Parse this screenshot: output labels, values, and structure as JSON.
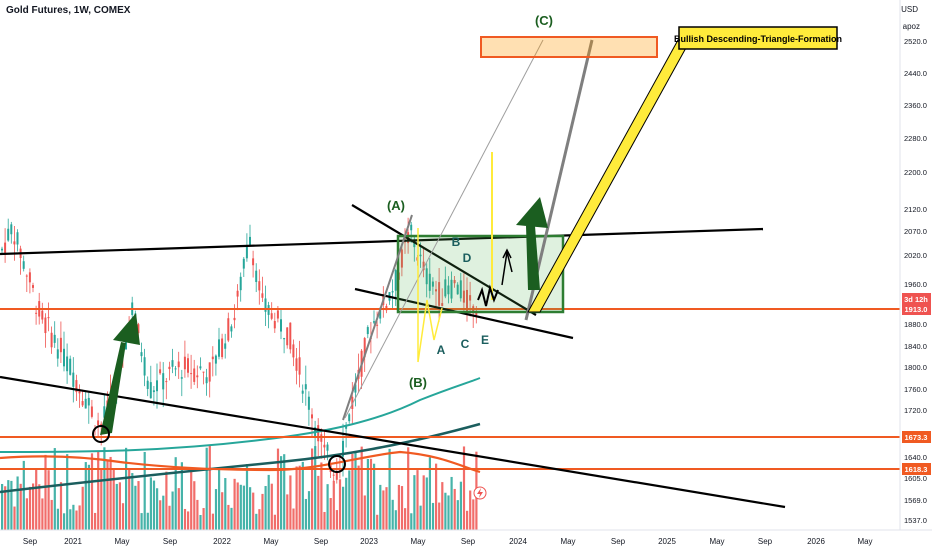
{
  "header": {
    "symbol_title": "Gold Futures, 1W, COMEX",
    "currency": "USD",
    "unit_label": "apoz"
  },
  "price_axis": {
    "ticks": [
      "2520.0",
      "2440.0",
      "2360.0",
      "2280.0",
      "2200.0",
      "2120.0",
      "2070.0",
      "2020.0",
      "1960.0",
      "1880.0",
      "1840.0",
      "1800.0",
      "1760.0",
      "1720.0",
      "1640.0",
      "1605.0",
      "1569.0",
      "1537.0"
    ],
    "labels": [
      {
        "text": "3d 12h",
        "price": 1940,
        "color": "#ef5350"
      },
      {
        "text": "1913.0",
        "price": 1913,
        "color": "#ef5350"
      },
      {
        "text": "1673.3",
        "price": 1673.3,
        "color": "#f05a22"
      },
      {
        "text": "1618.3",
        "price": 1618.3,
        "color": "#f05a22"
      }
    ]
  },
  "time_axis": {
    "ticks": [
      "Sep",
      "2021",
      "May",
      "Sep",
      "2022",
      "May",
      "Sep",
      "2023",
      "May",
      "Sep",
      "2024",
      "May",
      "Sep",
      "2025",
      "May",
      "Sep",
      "2026",
      "May"
    ]
  },
  "annotations": {
    "callout": "Bullish Descending-Triangle-Formation",
    "wave_labels": [
      "(C)",
      "(A)",
      "(B)",
      "A",
      "B",
      "C",
      "D",
      "E"
    ]
  },
  "chart_data": {
    "type": "candlestick",
    "title": "Gold Futures, 1W, COMEX",
    "y_unit": "USD",
    "ylim": [
      1520,
      2580
    ],
    "x_range": [
      "2020-08",
      "2026-06"
    ],
    "key_levels": [
      1913.0,
      1673.3,
      1618.3
    ],
    "target_zone": [
      2500,
      2530
    ],
    "approx_swings": [
      {
        "date": "2020-08",
        "price": 2080
      },
      {
        "date": "2021-03",
        "price": 1680
      },
      {
        "date": "2021-06",
        "price": 1915
      },
      {
        "date": "2022-03",
        "price": 2070
      },
      {
        "date": "2022-10",
        "price": 1620
      },
      {
        "date": "2023-05",
        "price": 2085
      },
      {
        "date": "2023-10",
        "price": 1830
      }
    ],
    "colors": {
      "up": "#26a69a",
      "down": "#ef5350",
      "levels": "#f05a22",
      "box": "#2e7d32",
      "callout": "#ffeb3b"
    }
  }
}
